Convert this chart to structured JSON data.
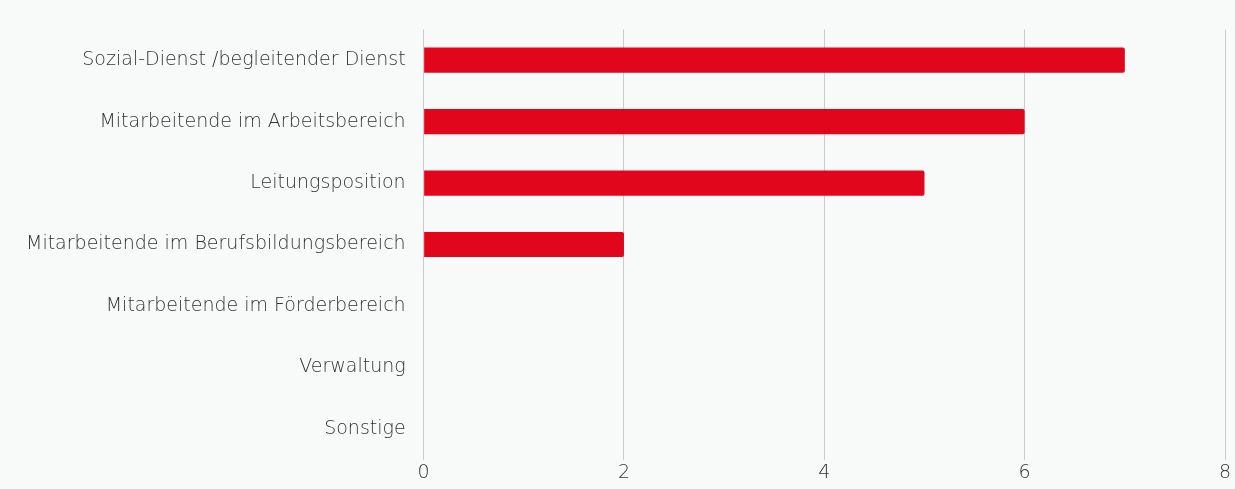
{
  "chart_data": {
    "type": "bar",
    "orientation": "horizontal",
    "categories": [
      "Sozial-Dienst /begleitender Dienst",
      "Mitarbeitende im Arbeitsbereich",
      "Leitungsposition",
      "Mitarbeitende im Berufsbildungsbereich",
      "Mitarbeitende im Förderbereich",
      "Verwaltung",
      "Sonstige"
    ],
    "values": [
      7,
      6,
      5,
      2,
      0,
      0,
      0
    ],
    "color": "#e2061c",
    "xlim": [
      0,
      8
    ],
    "xticks": [
      0,
      2,
      4,
      6,
      8
    ],
    "grid": "x"
  }
}
